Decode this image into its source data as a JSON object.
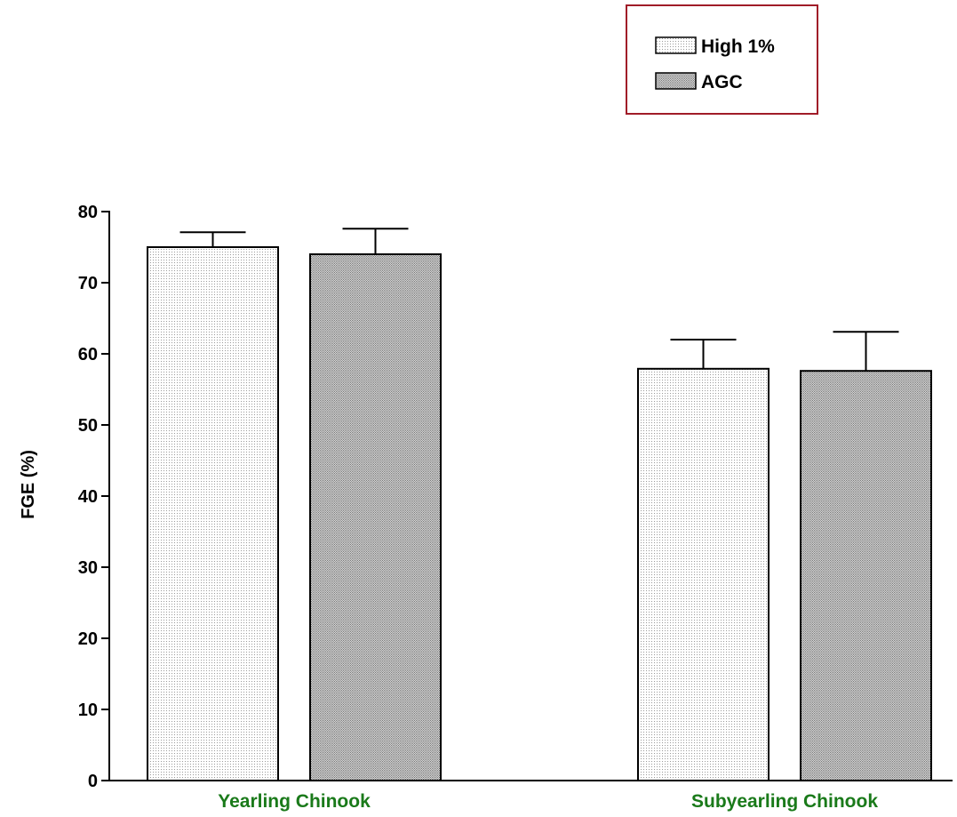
{
  "chart_data": {
    "type": "bar",
    "categories": [
      "Yearling Chinook",
      "Subyearling Chinook"
    ],
    "series": [
      {
        "name": "High 1%",
        "values": [
          75.0,
          57.9
        ],
        "errors": [
          2.1,
          4.1
        ],
        "pattern": "light-dots"
      },
      {
        "name": "AGC",
        "values": [
          74.0,
          57.6
        ],
        "errors": [
          3.6,
          5.5
        ],
        "pattern": "dark-dots"
      }
    ],
    "ylabel": "FGE (%)",
    "ylim": [
      0,
      80
    ],
    "yticks": [
      0,
      10,
      20,
      30,
      40,
      50,
      60,
      70,
      80
    ],
    "grid": false,
    "legend_position": "top-right",
    "colors": {
      "category_label": "#1a7a1a",
      "legend_border": "#a01c28",
      "bar_stroke": "#000000",
      "light_fill": "#f0f0f0",
      "dark_fill": "#c4c4c4"
    }
  }
}
